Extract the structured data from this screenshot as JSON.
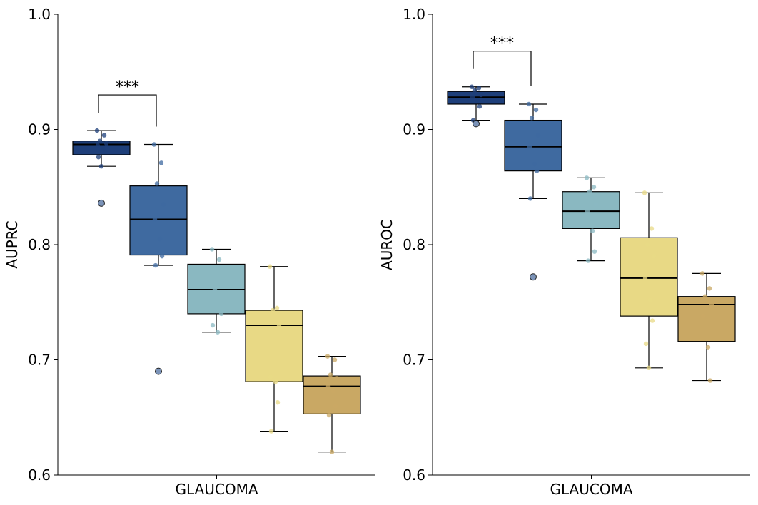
{
  "chart_data": [
    {
      "type": "box",
      "xlabel": "GLAUCOMA",
      "ylabel": "AUPRC",
      "ylim": [
        0.6,
        1.0
      ],
      "yticks": [
        0.6,
        0.7,
        0.8,
        0.9,
        1.0
      ],
      "ytick_labels": [
        "0.6",
        "0.7",
        "0.8",
        "0.9",
        "1.0"
      ],
      "boxes": [
        {
          "color": "#1e3f7a",
          "whisker_low": 0.868,
          "q1": 0.878,
          "median": 0.887,
          "q3": 0.89,
          "whisker_high": 0.899,
          "outliers": [
            0.836
          ],
          "points": [
            0.899,
            0.895,
            0.89,
            0.888,
            0.886,
            0.884,
            0.881,
            0.876,
            0.868
          ]
        },
        {
          "color": "#3f6aa0",
          "whisker_low": 0.782,
          "q1": 0.791,
          "median": 0.822,
          "q3": 0.851,
          "whisker_high": 0.887,
          "outliers": [
            0.69
          ],
          "points": [
            0.887,
            0.871,
            0.853,
            0.835,
            0.822,
            0.805,
            0.79,
            0.782
          ]
        },
        {
          "color": "#8ab8c1",
          "whisker_low": 0.724,
          "q1": 0.74,
          "median": 0.761,
          "q3": 0.783,
          "whisker_high": 0.796,
          "outliers": [],
          "points": [
            0.796,
            0.787,
            0.761,
            0.74,
            0.73,
            0.724
          ]
        },
        {
          "color": "#e8d985",
          "whisker_low": 0.638,
          "q1": 0.681,
          "median": 0.73,
          "q3": 0.743,
          "whisker_high": 0.781,
          "outliers": [],
          "points": [
            0.781,
            0.745,
            0.743,
            0.73,
            0.685,
            0.681,
            0.663,
            0.638
          ]
        },
        {
          "color": "#c9a864",
          "whisker_low": 0.62,
          "q1": 0.653,
          "median": 0.677,
          "q3": 0.686,
          "whisker_high": 0.703,
          "outliers": [],
          "points": [
            0.703,
            0.7,
            0.687,
            0.684,
            0.677,
            0.673,
            0.66,
            0.652,
            0.62
          ]
        }
      ],
      "annotations": [
        {
          "text": "***",
          "between": [
            0,
            1
          ],
          "y": 0.93
        }
      ]
    },
    {
      "type": "box",
      "xlabel": "GLAUCOMA",
      "ylabel": "AUROC",
      "ylim": [
        0.6,
        1.0
      ],
      "yticks": [
        0.6,
        0.7,
        0.8,
        0.9,
        1.0
      ],
      "ytick_labels": [
        "0.6",
        "0.7",
        "0.8",
        "0.9",
        "1.0"
      ],
      "boxes": [
        {
          "color": "#1e3f7a",
          "whisker_low": 0.908,
          "q1": 0.922,
          "median": 0.928,
          "q3": 0.933,
          "whisker_high": 0.937,
          "outliers": [
            0.905
          ],
          "points": [
            0.937,
            0.936,
            0.934,
            0.93,
            0.928,
            0.925,
            0.92,
            0.908
          ]
        },
        {
          "color": "#3f6aa0",
          "whisker_low": 0.84,
          "q1": 0.864,
          "median": 0.885,
          "q3": 0.908,
          "whisker_high": 0.922,
          "outliers": [
            0.772
          ],
          "points": [
            0.922,
            0.917,
            0.91,
            0.895,
            0.885,
            0.87,
            0.864,
            0.84
          ]
        },
        {
          "color": "#8ab8c1",
          "whisker_low": 0.786,
          "q1": 0.814,
          "median": 0.829,
          "q3": 0.846,
          "whisker_high": 0.858,
          "outliers": [],
          "points": [
            0.858,
            0.85,
            0.846,
            0.835,
            0.829,
            0.812,
            0.794,
            0.786
          ]
        },
        {
          "color": "#e8d985",
          "whisker_low": 0.693,
          "q1": 0.738,
          "median": 0.771,
          "q3": 0.806,
          "whisker_high": 0.845,
          "outliers": [],
          "points": [
            0.845,
            0.814,
            0.8,
            0.79,
            0.771,
            0.752,
            0.734,
            0.714,
            0.693
          ]
        },
        {
          "color": "#c9a864",
          "whisker_low": 0.682,
          "q1": 0.716,
          "median": 0.748,
          "q3": 0.755,
          "whisker_high": 0.775,
          "outliers": [],
          "points": [
            0.775,
            0.762,
            0.755,
            0.748,
            0.738,
            0.711,
            0.682
          ]
        }
      ],
      "annotations": [
        {
          "text": "***",
          "between": [
            0,
            1
          ],
          "y": 0.968
        }
      ]
    }
  ]
}
